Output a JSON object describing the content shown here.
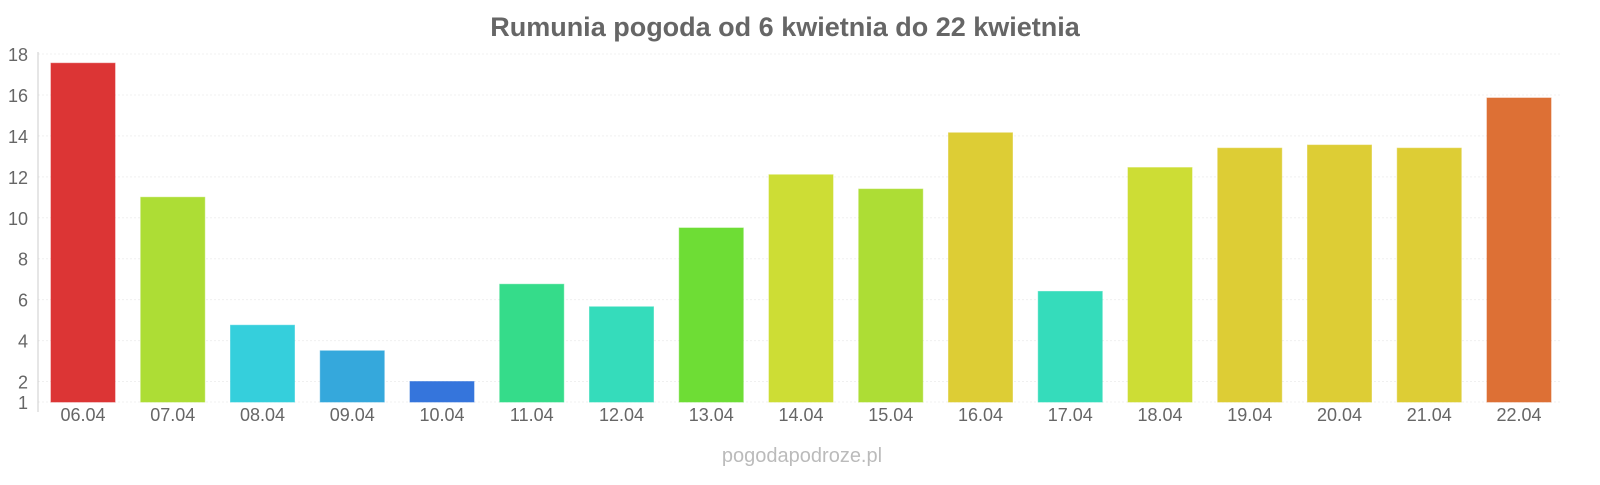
{
  "chart_data": {
    "type": "bar",
    "title": "Rumunia pogoda od 6 kwietnia do 22 kwietnia",
    "xlabel": "",
    "ylabel": "",
    "ylim": [
      1,
      18
    ],
    "yticks": [
      1,
      2,
      4,
      6,
      8,
      10,
      12,
      14,
      16,
      18
    ],
    "grid": true,
    "categories": [
      "06.04",
      "07.04",
      "08.04",
      "09.04",
      "10.04",
      "11.04",
      "12.04",
      "13.04",
      "14.04",
      "15.04",
      "16.04",
      "17.04",
      "18.04",
      "19.04",
      "20.04",
      "21.04",
      "22.04"
    ],
    "values": [
      17.55,
      11.0,
      4.75,
      3.5,
      2.0,
      6.75,
      5.65,
      9.5,
      12.1,
      11.4,
      14.15,
      6.4,
      12.45,
      13.4,
      13.55,
      13.4,
      15.85
    ],
    "colors": [
      "#dc3535",
      "#addd35",
      "#35cfdc",
      "#35a8dc",
      "#3575dc",
      "#35dc8a",
      "#35dcbb",
      "#6edd35",
      "#cddd35",
      "#addd35",
      "#ddcd35",
      "#35dcbb",
      "#cddd35",
      "#ddcd35",
      "#ddcd35",
      "#ddcd35",
      "#dd7035"
    ]
  },
  "watermark": "pogodapodroze.pl"
}
